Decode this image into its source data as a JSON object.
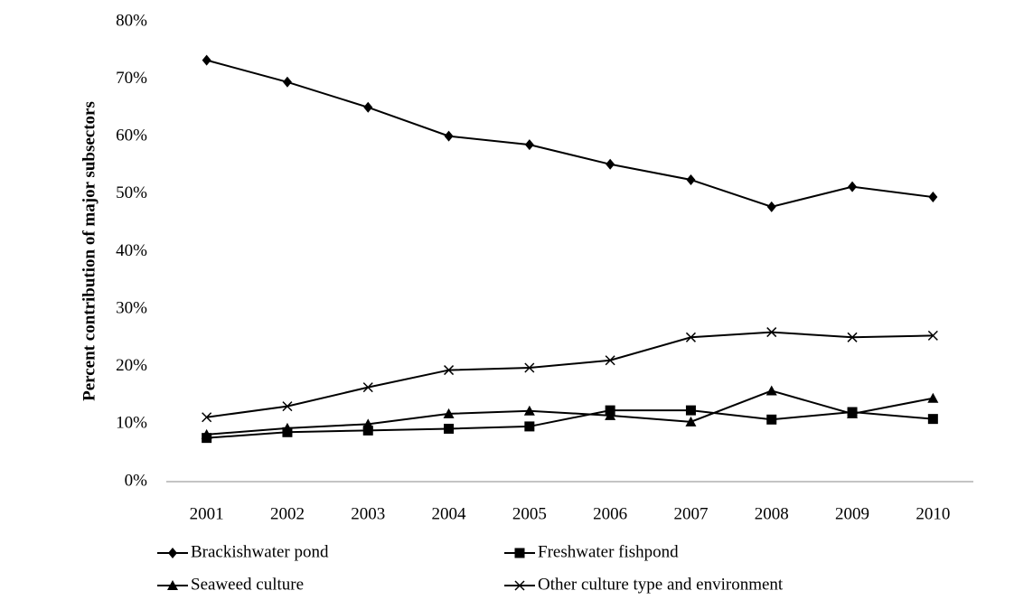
{
  "chart_data": {
    "type": "line",
    "y_label": "Percent contribution of major subsectors",
    "categories": [
      "2001",
      "2002",
      "2003",
      "2004",
      "2005",
      "2006",
      "2007",
      "2008",
      "2009",
      "2010"
    ],
    "series": [
      {
        "name": "Brackishwater pond",
        "color": "#000000",
        "marker": "diamond",
        "values": [
          73.3,
          69.5,
          65.1,
          60.1,
          58.6,
          55.2,
          52.5,
          47.8,
          51.3,
          49.5
        ]
      },
      {
        "name": "Freshwater fishpond",
        "color": "#000000",
        "marker": "square",
        "values": [
          7.6,
          8.6,
          8.9,
          9.2,
          9.6,
          12.4,
          12.4,
          10.8,
          12.1,
          10.9
        ]
      },
      {
        "name": "Seaweed culture",
        "color": "#000000",
        "marker": "triangle",
        "values": [
          8.2,
          9.3,
          10.0,
          11.8,
          12.3,
          11.5,
          10.4,
          15.8,
          11.8,
          14.5
        ]
      },
      {
        "name": "Other culture type and environment",
        "color": "#000000",
        "marker": "x",
        "values": [
          11.2,
          13.1,
          16.4,
          19.4,
          19.8,
          21.1,
          25.1,
          26.0,
          25.1,
          25.4
        ]
      }
    ],
    "ylim": [
      0,
      80
    ],
    "yticks": [
      {
        "value": 0,
        "label": "0%"
      },
      {
        "value": 10,
        "label": "10%"
      },
      {
        "value": 20,
        "label": "20%"
      },
      {
        "value": 30,
        "label": "30%"
      },
      {
        "value": 40,
        "label": "40%"
      },
      {
        "value": 50,
        "label": "50%"
      },
      {
        "value": 60,
        "label": "60%"
      },
      {
        "value": 70,
        "label": "70%"
      },
      {
        "value": 80,
        "label": "80%"
      }
    ],
    "grid": false,
    "legend": "bottom"
  }
}
